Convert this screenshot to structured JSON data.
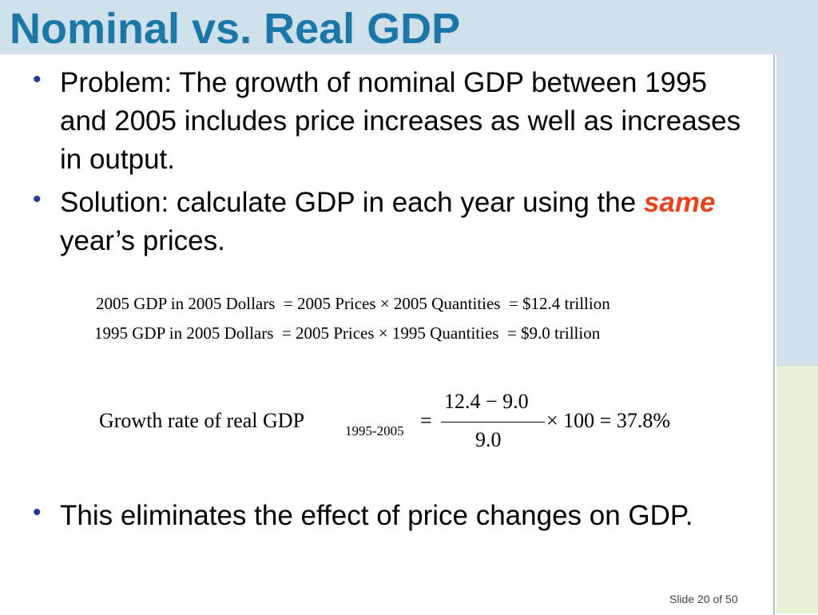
{
  "slide": {
    "title": "Nominal vs. Real GDP",
    "bullets": {
      "b1": "Problem: The growth of nominal GDP between 1995 and 2005 includes price increases as well as increases in output.",
      "b2_before": "Solution: calculate GDP in each year using the",
      "b2_emph": "same",
      "b2_after": " year’s prices.",
      "b3": "This eliminates the effect of price changes on GDP."
    },
    "equations": {
      "eq1": {
        "lhs": "2005 GDP in 2005 Dollars",
        "rhs": "= 2005 Prices × 2005 Quantities",
        "result": "= $12.4 trillion"
      },
      "eq2": {
        "lhs": "1995 GDP in 2005 Dollars",
        "rhs": "= 2005 Prices × 1995 Quantities",
        "result": "= $9.0 trillion"
      },
      "growth": {
        "label": "Growth rate of real GDP",
        "subscript": "1995-2005",
        "equals": "=",
        "numerator": "12.4 − 9.0",
        "denominator": "9.0",
        "rest": "× 100 = 37.8%"
      }
    },
    "slide_number": "Slide 20 of 50"
  },
  "colors": {
    "title": "#1a78a8",
    "bullet": "#1d3d8f",
    "emphasis": "#e8431a",
    "header_band": "#cfe0ea",
    "side_band_green": "#e6f0d4"
  }
}
